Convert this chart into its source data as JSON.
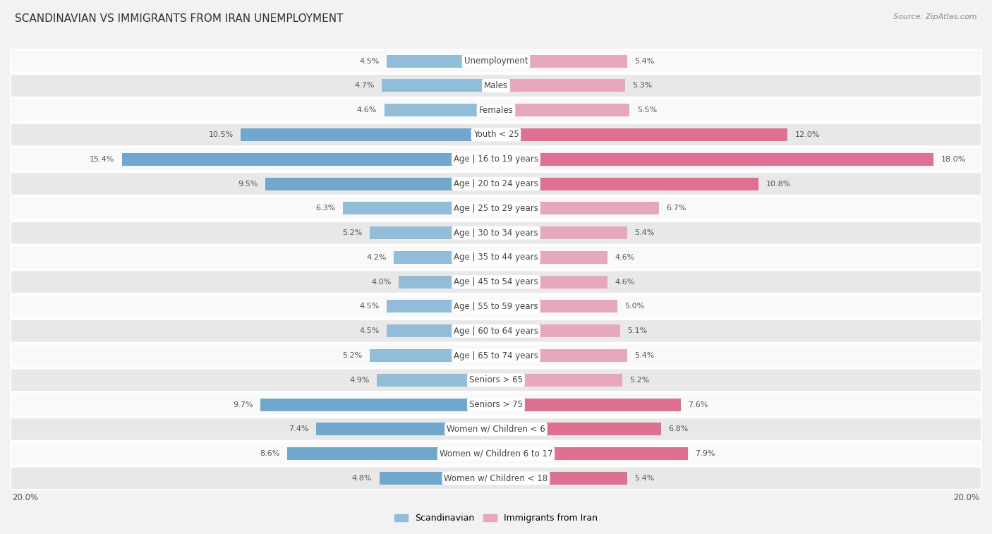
{
  "title": "SCANDINAVIAN VS IMMIGRANTS FROM IRAN UNEMPLOYMENT",
  "source": "Source: ZipAtlas.com",
  "categories": [
    "Unemployment",
    "Males",
    "Females",
    "Youth < 25",
    "Age | 16 to 19 years",
    "Age | 20 to 24 years",
    "Age | 25 to 29 years",
    "Age | 30 to 34 years",
    "Age | 35 to 44 years",
    "Age | 45 to 54 years",
    "Age | 55 to 59 years",
    "Age | 60 to 64 years",
    "Age | 65 to 74 years",
    "Seniors > 65",
    "Seniors > 75",
    "Women w/ Children < 6",
    "Women w/ Children 6 to 17",
    "Women w/ Children < 18"
  ],
  "scandinavian": [
    4.5,
    4.7,
    4.6,
    10.5,
    15.4,
    9.5,
    6.3,
    5.2,
    4.2,
    4.0,
    4.5,
    4.5,
    5.2,
    4.9,
    9.7,
    7.4,
    8.6,
    4.8
  ],
  "iran": [
    5.4,
    5.3,
    5.5,
    12.0,
    18.0,
    10.8,
    6.7,
    5.4,
    4.6,
    4.6,
    5.0,
    5.1,
    5.4,
    5.2,
    7.6,
    6.8,
    7.9,
    5.4
  ],
  "scand_color": "#92bdd8",
  "iran_color": "#e8a8bc",
  "highlight_scand_color": "#6fa8cc",
  "highlight_iran_color": "#e07090",
  "bg_color": "#f2f2f2",
  "row_color_light": "#f9f9f9",
  "row_color_dark": "#e8e8e8",
  "axis_limit": 20.0,
  "label_fontsize": 8.5,
  "title_fontsize": 11,
  "value_fontsize": 8.0,
  "highlight_rows": [
    "Age | 16 to 19 years",
    "Youth < 25",
    "Seniors > 75",
    "Women w/ Children 6 to 17"
  ]
}
